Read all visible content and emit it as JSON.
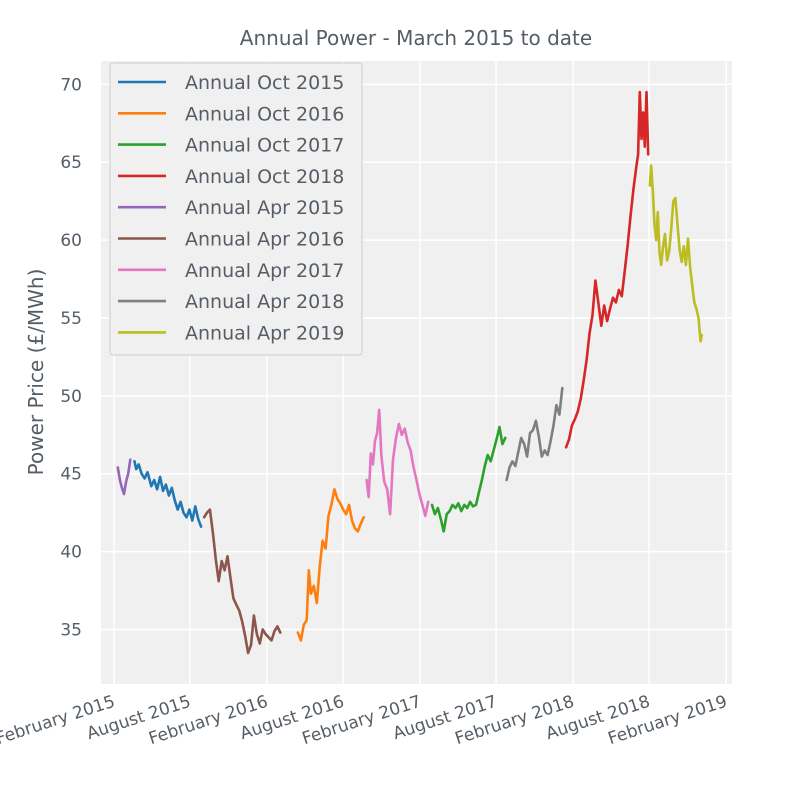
{
  "chart_data": {
    "type": "line",
    "title": "Annual Power - March 2015 to date",
    "xlabel": "",
    "ylabel": "Power Price (£/MWh)",
    "ylim": [
      31.5,
      71.5
    ],
    "yticks": [
      35,
      40,
      45,
      50,
      55,
      60,
      65,
      70
    ],
    "xlim": [
      "2015-01-01",
      "2019-02-15"
    ],
    "xticks": [
      {
        "date": "2015-02-01",
        "label": "February 2015"
      },
      {
        "date": "2015-08-01",
        "label": "August 2015"
      },
      {
        "date": "2016-02-01",
        "label": "February 2016"
      },
      {
        "date": "2016-08-01",
        "label": "August 2016"
      },
      {
        "date": "2017-02-01",
        "label": "February 2017"
      },
      {
        "date": "2017-08-01",
        "label": "August 2017"
      },
      {
        "date": "2018-02-01",
        "label": "February 2018"
      },
      {
        "date": "2018-08-01",
        "label": "August 2018"
      },
      {
        "date": "2019-02-01",
        "label": "February 2019"
      }
    ],
    "grid": true,
    "legend_position": "top-left",
    "series": [
      {
        "name": "Annual Oct 2015",
        "color": "#1f77b4",
        "points": [
          [
            "2015-03-22",
            45.8
          ],
          [
            "2015-03-26",
            45.3
          ],
          [
            "2015-04-01",
            45.6
          ],
          [
            "2015-04-08",
            45.0
          ],
          [
            "2015-04-15",
            44.7
          ],
          [
            "2015-04-22",
            45.1
          ],
          [
            "2015-05-01",
            44.2
          ],
          [
            "2015-05-08",
            44.6
          ],
          [
            "2015-05-15",
            44.0
          ],
          [
            "2015-05-22",
            44.8
          ],
          [
            "2015-05-29",
            43.9
          ],
          [
            "2015-06-05",
            44.3
          ],
          [
            "2015-06-12",
            43.6
          ],
          [
            "2015-06-19",
            44.1
          ],
          [
            "2015-06-26",
            43.3
          ],
          [
            "2015-07-03",
            42.7
          ],
          [
            "2015-07-10",
            43.2
          ],
          [
            "2015-07-17",
            42.5
          ],
          [
            "2015-07-24",
            42.2
          ],
          [
            "2015-07-31",
            42.7
          ],
          [
            "2015-08-07",
            42.0
          ],
          [
            "2015-08-14",
            42.9
          ],
          [
            "2015-08-21",
            42.1
          ],
          [
            "2015-08-28",
            41.6
          ]
        ]
      },
      {
        "name": "Annual Oct 2016",
        "color": "#ff7f0e",
        "points": [
          [
            "2016-04-15",
            34.8
          ],
          [
            "2016-04-22",
            34.3
          ],
          [
            "2016-04-29",
            35.3
          ],
          [
            "2016-05-06",
            35.6
          ],
          [
            "2016-05-11",
            38.8
          ],
          [
            "2016-05-16",
            37.3
          ],
          [
            "2016-05-23",
            37.8
          ],
          [
            "2016-05-30",
            36.7
          ],
          [
            "2016-06-06",
            39.0
          ],
          [
            "2016-06-13",
            40.7
          ],
          [
            "2016-06-20",
            40.2
          ],
          [
            "2016-06-27",
            42.3
          ],
          [
            "2016-07-04",
            43.0
          ],
          [
            "2016-07-11",
            44.0
          ],
          [
            "2016-07-18",
            43.4
          ],
          [
            "2016-07-25",
            43.1
          ],
          [
            "2016-08-01",
            42.7
          ],
          [
            "2016-08-08",
            42.4
          ],
          [
            "2016-08-15",
            43.0
          ],
          [
            "2016-08-22",
            42.0
          ],
          [
            "2016-08-29",
            41.5
          ],
          [
            "2016-09-05",
            41.3
          ],
          [
            "2016-09-12",
            41.8
          ],
          [
            "2016-09-19",
            42.2
          ]
        ]
      },
      {
        "name": "Annual Oct 2017",
        "color": "#2ca02c",
        "points": [
          [
            "2017-03-01",
            43.0
          ],
          [
            "2017-03-08",
            42.4
          ],
          [
            "2017-03-15",
            42.8
          ],
          [
            "2017-03-22",
            42.1
          ],
          [
            "2017-03-29",
            41.3
          ],
          [
            "2017-04-05",
            42.4
          ],
          [
            "2017-04-12",
            42.6
          ],
          [
            "2017-04-19",
            43.0
          ],
          [
            "2017-04-26",
            42.8
          ],
          [
            "2017-05-03",
            43.1
          ],
          [
            "2017-05-10",
            42.6
          ],
          [
            "2017-05-17",
            43.0
          ],
          [
            "2017-05-24",
            42.8
          ],
          [
            "2017-05-31",
            43.2
          ],
          [
            "2017-06-07",
            42.9
          ],
          [
            "2017-06-14",
            43.0
          ],
          [
            "2017-06-21",
            43.8
          ],
          [
            "2017-06-28",
            44.6
          ],
          [
            "2017-07-05",
            45.5
          ],
          [
            "2017-07-12",
            46.2
          ],
          [
            "2017-07-19",
            45.8
          ],
          [
            "2017-07-26",
            46.5
          ],
          [
            "2017-08-02",
            47.2
          ],
          [
            "2017-08-09",
            48.0
          ],
          [
            "2017-08-16",
            46.9
          ],
          [
            "2017-08-23",
            47.3
          ]
        ]
      },
      {
        "name": "Annual Oct 2018",
        "color": "#d62728",
        "points": [
          [
            "2018-01-15",
            46.7
          ],
          [
            "2018-01-22",
            47.2
          ],
          [
            "2018-01-29",
            48.1
          ],
          [
            "2018-02-05",
            48.5
          ],
          [
            "2018-02-12",
            49.0
          ],
          [
            "2018-02-19",
            49.8
          ],
          [
            "2018-02-26",
            51.0
          ],
          [
            "2018-03-05",
            52.3
          ],
          [
            "2018-03-12",
            54.0
          ],
          [
            "2018-03-19",
            55.2
          ],
          [
            "2018-03-26",
            57.4
          ],
          [
            "2018-04-02",
            56.0
          ],
          [
            "2018-04-09",
            54.5
          ],
          [
            "2018-04-16",
            55.8
          ],
          [
            "2018-04-23",
            54.8
          ],
          [
            "2018-04-30",
            55.6
          ],
          [
            "2018-05-07",
            56.3
          ],
          [
            "2018-05-14",
            56.0
          ],
          [
            "2018-05-21",
            56.8
          ],
          [
            "2018-05-28",
            56.4
          ],
          [
            "2018-06-04",
            58.0
          ],
          [
            "2018-06-11",
            59.7
          ],
          [
            "2018-06-18",
            61.6
          ],
          [
            "2018-06-25",
            63.3
          ],
          [
            "2018-07-02",
            64.8
          ],
          [
            "2018-07-06",
            65.5
          ],
          [
            "2018-07-10",
            69.5
          ],
          [
            "2018-07-14",
            66.5
          ],
          [
            "2018-07-18",
            68.2
          ],
          [
            "2018-07-22",
            66.0
          ],
          [
            "2018-07-26",
            69.5
          ],
          [
            "2018-07-30",
            65.5
          ]
        ]
      },
      {
        "name": "Annual Apr 2015",
        "color": "#9467bd",
        "points": [
          [
            "2015-02-10",
            45.4
          ],
          [
            "2015-02-15",
            44.6
          ],
          [
            "2015-02-20",
            44.1
          ],
          [
            "2015-02-25",
            43.7
          ],
          [
            "2015-03-02",
            44.5
          ],
          [
            "2015-03-07",
            45.0
          ],
          [
            "2015-03-12",
            45.9
          ]
        ]
      },
      {
        "name": "Annual Apr 2016",
        "color": "#8c564b",
        "points": [
          [
            "2015-09-04",
            42.2
          ],
          [
            "2015-09-11",
            42.5
          ],
          [
            "2015-09-18",
            42.7
          ],
          [
            "2015-09-25",
            41.2
          ],
          [
            "2015-10-02",
            39.5
          ],
          [
            "2015-10-09",
            38.1
          ],
          [
            "2015-10-16",
            39.4
          ],
          [
            "2015-10-23",
            38.8
          ],
          [
            "2015-10-30",
            39.7
          ],
          [
            "2015-11-06",
            38.3
          ],
          [
            "2015-11-13",
            37.0
          ],
          [
            "2015-11-20",
            36.6
          ],
          [
            "2015-11-27",
            36.2
          ],
          [
            "2015-12-04",
            35.5
          ],
          [
            "2015-12-11",
            34.6
          ],
          [
            "2015-12-18",
            33.5
          ],
          [
            "2015-12-25",
            34.0
          ],
          [
            "2016-01-01",
            35.9
          ],
          [
            "2016-01-08",
            34.7
          ],
          [
            "2016-01-15",
            34.1
          ],
          [
            "2016-01-22",
            35.0
          ],
          [
            "2016-01-29",
            34.7
          ],
          [
            "2016-02-05",
            34.5
          ],
          [
            "2016-02-12",
            34.3
          ],
          [
            "2016-02-19",
            34.9
          ],
          [
            "2016-02-26",
            35.2
          ],
          [
            "2016-03-04",
            34.8
          ]
        ]
      },
      {
        "name": "Annual Apr 2017",
        "color": "#e377c2",
        "points": [
          [
            "2016-09-26",
            44.6
          ],
          [
            "2016-10-01",
            43.5
          ],
          [
            "2016-10-06",
            46.3
          ],
          [
            "2016-10-11",
            45.6
          ],
          [
            "2016-10-16",
            47.1
          ],
          [
            "2016-10-21",
            47.6
          ],
          [
            "2016-10-26",
            49.1
          ],
          [
            "2016-10-31",
            46.2
          ],
          [
            "2016-11-07",
            44.5
          ],
          [
            "2016-11-14",
            44.0
          ],
          [
            "2016-11-21",
            42.4
          ],
          [
            "2016-11-28",
            45.9
          ],
          [
            "2016-12-05",
            47.3
          ],
          [
            "2016-12-12",
            48.2
          ],
          [
            "2016-12-19",
            47.5
          ],
          [
            "2016-12-26",
            47.9
          ],
          [
            "2017-01-02",
            47.0
          ],
          [
            "2017-01-09",
            46.5
          ],
          [
            "2017-01-16",
            45.4
          ],
          [
            "2017-01-23",
            44.6
          ],
          [
            "2017-01-30",
            43.7
          ],
          [
            "2017-02-06",
            43.0
          ],
          [
            "2017-02-13",
            42.3
          ],
          [
            "2017-02-20",
            43.2
          ]
        ]
      },
      {
        "name": "Annual Apr 2018",
        "color": "#7f7f7f",
        "points": [
          [
            "2017-08-26",
            44.6
          ],
          [
            "2017-09-02",
            45.4
          ],
          [
            "2017-09-09",
            45.8
          ],
          [
            "2017-09-16",
            45.5
          ],
          [
            "2017-09-23",
            46.4
          ],
          [
            "2017-09-30",
            47.3
          ],
          [
            "2017-10-07",
            46.9
          ],
          [
            "2017-10-14",
            46.1
          ],
          [
            "2017-10-21",
            47.6
          ],
          [
            "2017-10-28",
            47.8
          ],
          [
            "2017-11-04",
            48.4
          ],
          [
            "2017-11-11",
            47.4
          ],
          [
            "2017-11-18",
            46.1
          ],
          [
            "2017-11-25",
            46.5
          ],
          [
            "2017-12-02",
            46.2
          ],
          [
            "2017-12-09",
            47.1
          ],
          [
            "2017-12-16",
            48.1
          ],
          [
            "2017-12-23",
            49.4
          ],
          [
            "2017-12-30",
            48.8
          ],
          [
            "2018-01-06",
            50.5
          ]
        ]
      },
      {
        "name": "Annual Apr 2019",
        "color": "#bcbd22",
        "points": [
          [
            "2018-08-03",
            63.5
          ],
          [
            "2018-08-06",
            64.8
          ],
          [
            "2018-08-10",
            63.2
          ],
          [
            "2018-08-14",
            61.0
          ],
          [
            "2018-08-18",
            60.0
          ],
          [
            "2018-08-22",
            61.8
          ],
          [
            "2018-08-26",
            59.2
          ],
          [
            "2018-08-30",
            58.4
          ],
          [
            "2018-09-03",
            59.5
          ],
          [
            "2018-09-08",
            60.4
          ],
          [
            "2018-09-13",
            58.7
          ],
          [
            "2018-09-18",
            59.3
          ],
          [
            "2018-09-23",
            60.7
          ],
          [
            "2018-09-28",
            62.5
          ],
          [
            "2018-10-03",
            62.7
          ],
          [
            "2018-10-08",
            61.0
          ],
          [
            "2018-10-13",
            59.4
          ],
          [
            "2018-10-18",
            58.6
          ],
          [
            "2018-10-23",
            59.6
          ],
          [
            "2018-10-28",
            58.4
          ],
          [
            "2018-11-02",
            60.1
          ],
          [
            "2018-11-07",
            58.3
          ],
          [
            "2018-11-12",
            57.1
          ],
          [
            "2018-11-17",
            56.0
          ],
          [
            "2018-11-22",
            55.6
          ],
          [
            "2018-11-27",
            55.0
          ],
          [
            "2018-12-02",
            53.5
          ],
          [
            "2018-12-05",
            53.9
          ]
        ]
      }
    ]
  }
}
